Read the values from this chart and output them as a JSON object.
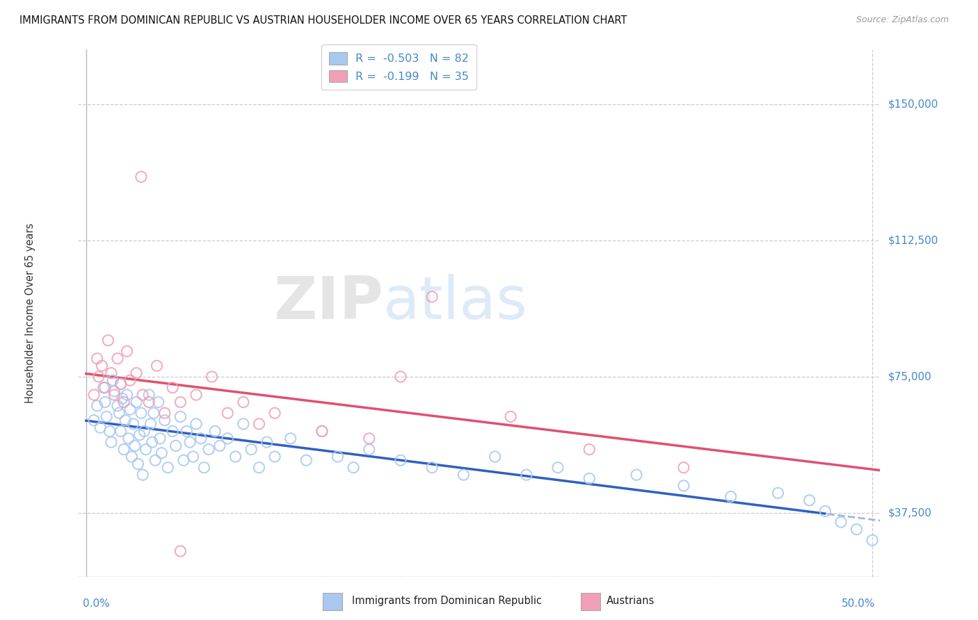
{
  "title": "IMMIGRANTS FROM DOMINICAN REPUBLIC VS AUSTRIAN HOUSEHOLDER INCOME OVER 65 YEARS CORRELATION CHART",
  "source": "Source: ZipAtlas.com",
  "ylabel": "Householder Income Over 65 years",
  "yticks": [
    37500,
    75000,
    112500,
    150000
  ],
  "ytick_labels": [
    "$37,500",
    "$75,000",
    "$112,500",
    "$150,000"
  ],
  "xlim": [
    -0.005,
    0.505
  ],
  "ylim": [
    20000,
    165000
  ],
  "blue_R": -0.503,
  "blue_N": 82,
  "pink_R": -0.199,
  "pink_N": 35,
  "blue_color": "#A8C8F0",
  "pink_color": "#F0A0B8",
  "blue_edge_color": "#6090D0",
  "pink_edge_color": "#E06080",
  "blue_line_color": "#3060C0",
  "pink_line_color": "#E05070",
  "watermark_zip": "ZIP",
  "watermark_atlas": "atlas",
  "legend_label_blue": "Immigrants from Dominican Republic",
  "legend_label_pink": "Austrians",
  "blue_scatter_x": [
    0.005,
    0.007,
    0.009,
    0.011,
    0.012,
    0.013,
    0.015,
    0.016,
    0.017,
    0.018,
    0.02,
    0.021,
    0.022,
    0.022,
    0.023,
    0.024,
    0.025,
    0.026,
    0.027,
    0.028,
    0.029,
    0.03,
    0.031,
    0.032,
    0.033,
    0.034,
    0.035,
    0.036,
    0.037,
    0.038,
    0.04,
    0.041,
    0.042,
    0.043,
    0.044,
    0.046,
    0.047,
    0.048,
    0.05,
    0.052,
    0.055,
    0.057,
    0.06,
    0.062,
    0.064,
    0.066,
    0.068,
    0.07,
    0.073,
    0.075,
    0.078,
    0.082,
    0.085,
    0.09,
    0.095,
    0.1,
    0.105,
    0.11,
    0.115,
    0.12,
    0.13,
    0.14,
    0.15,
    0.16,
    0.17,
    0.18,
    0.2,
    0.22,
    0.24,
    0.26,
    0.28,
    0.3,
    0.32,
    0.35,
    0.38,
    0.41,
    0.44,
    0.46,
    0.47,
    0.48,
    0.49,
    0.5
  ],
  "blue_scatter_y": [
    63000,
    67000,
    61000,
    72000,
    68000,
    64000,
    60000,
    57000,
    74000,
    71000,
    67000,
    65000,
    60000,
    73000,
    69000,
    55000,
    63000,
    70000,
    58000,
    66000,
    53000,
    62000,
    56000,
    68000,
    51000,
    59000,
    65000,
    48000,
    60000,
    55000,
    70000,
    62000,
    57000,
    65000,
    52000,
    68000,
    58000,
    54000,
    63000,
    50000,
    60000,
    56000,
    64000,
    52000,
    60000,
    57000,
    53000,
    62000,
    58000,
    50000,
    55000,
    60000,
    56000,
    58000,
    53000,
    62000,
    55000,
    50000,
    57000,
    53000,
    58000,
    52000,
    60000,
    53000,
    50000,
    55000,
    52000,
    50000,
    48000,
    53000,
    48000,
    50000,
    47000,
    48000,
    45000,
    42000,
    43000,
    41000,
    38000,
    35000,
    33000,
    30000
  ],
  "pink_scatter_x": [
    0.005,
    0.007,
    0.008,
    0.01,
    0.012,
    0.014,
    0.016,
    0.018,
    0.02,
    0.022,
    0.024,
    0.026,
    0.028,
    0.032,
    0.036,
    0.04,
    0.045,
    0.05,
    0.055,
    0.06,
    0.07,
    0.08,
    0.09,
    0.1,
    0.11,
    0.12,
    0.15,
    0.18,
    0.22,
    0.27,
    0.32,
    0.38,
    0.2,
    0.035,
    0.06
  ],
  "pink_scatter_y": [
    70000,
    80000,
    75000,
    78000,
    72000,
    85000,
    76000,
    70000,
    80000,
    73000,
    68000,
    82000,
    74000,
    76000,
    70000,
    68000,
    78000,
    65000,
    72000,
    68000,
    70000,
    75000,
    65000,
    68000,
    62000,
    65000,
    60000,
    58000,
    97000,
    64000,
    55000,
    50000,
    75000,
    130000,
    27000
  ]
}
